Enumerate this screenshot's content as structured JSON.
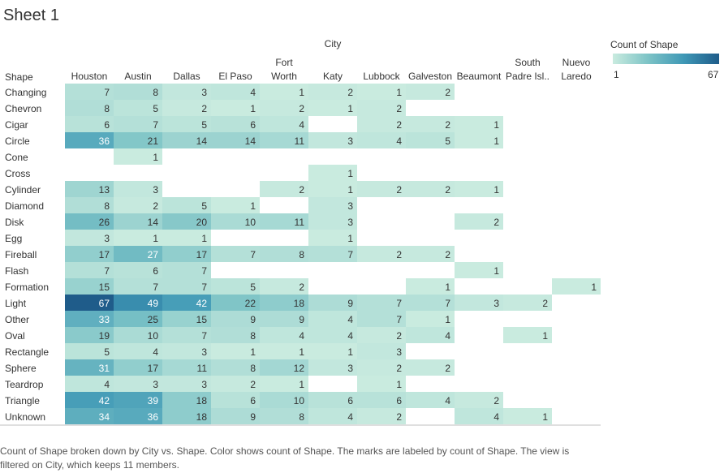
{
  "sheet_title": "Sheet 1",
  "legend": {
    "title": "Count of Shape",
    "min_label": "1",
    "max_label": "67",
    "colors": [
      "#c9ebdf",
      "#7cc3c6",
      "#3f98b6",
      "#1f5c8a"
    ]
  },
  "caption": "Count of Shape broken down by City vs. Shape.  Color shows count of Shape.  The marks are labeled by count of Shape. The view is filtered on City, which keeps 11 members.",
  "chart_data": {
    "type": "heatmap",
    "column_axis_title": "City",
    "row_axis_title": "Shape",
    "columns": [
      [
        "Houston"
      ],
      [
        "Austin"
      ],
      [
        "Dallas"
      ],
      [
        "El Paso"
      ],
      [
        "Fort",
        "Worth"
      ],
      [
        "Katy"
      ],
      [
        "Lubbock"
      ],
      [
        "Galveston"
      ],
      [
        "Beaumont"
      ],
      [
        "South",
        "Padre Isl.."
      ],
      [
        "Nuevo",
        "Laredo"
      ]
    ],
    "rows": [
      "Changing",
      "Chevron",
      "Cigar",
      "Circle",
      "Cone",
      "Cross",
      "Cylinder",
      "Diamond",
      "Disk",
      "Egg",
      "Fireball",
      "Flash",
      "Formation",
      "Light",
      "Other",
      "Oval",
      "Rectangle",
      "Sphere",
      "Teardrop",
      "Triangle",
      "Unknown"
    ],
    "values": [
      [
        7,
        8,
        3,
        4,
        1,
        2,
        1,
        2,
        null,
        null,
        null
      ],
      [
        8,
        5,
        2,
        1,
        2,
        1,
        2,
        null,
        null,
        null,
        null
      ],
      [
        6,
        7,
        5,
        6,
        4,
        null,
        2,
        2,
        1,
        null,
        null
      ],
      [
        36,
        21,
        14,
        14,
        11,
        3,
        4,
        5,
        1,
        null,
        null
      ],
      [
        null,
        1,
        null,
        null,
        null,
        null,
        null,
        null,
        null,
        null,
        null
      ],
      [
        null,
        null,
        null,
        null,
        null,
        1,
        null,
        null,
        null,
        null,
        null
      ],
      [
        13,
        3,
        null,
        null,
        2,
        1,
        2,
        2,
        1,
        null,
        null
      ],
      [
        8,
        2,
        5,
        1,
        null,
        3,
        null,
        null,
        null,
        null,
        null
      ],
      [
        26,
        14,
        20,
        10,
        11,
        3,
        null,
        null,
        2,
        null,
        null
      ],
      [
        3,
        1,
        1,
        null,
        null,
        1,
        null,
        null,
        null,
        null,
        null
      ],
      [
        17,
        27,
        17,
        7,
        8,
        7,
        2,
        2,
        null,
        null,
        null
      ],
      [
        7,
        6,
        7,
        null,
        null,
        null,
        null,
        null,
        1,
        null,
        null
      ],
      [
        15,
        7,
        7,
        5,
        2,
        null,
        null,
        1,
        null,
        null,
        1
      ],
      [
        67,
        49,
        42,
        22,
        18,
        9,
        7,
        7,
        3,
        2,
        null
      ],
      [
        33,
        25,
        15,
        9,
        9,
        4,
        7,
        1,
        null,
        null,
        null
      ],
      [
        19,
        10,
        7,
        8,
        4,
        4,
        2,
        4,
        null,
        1,
        null
      ],
      [
        5,
        4,
        3,
        1,
        1,
        1,
        3,
        null,
        null,
        null,
        null
      ],
      [
        31,
        17,
        11,
        8,
        12,
        3,
        2,
        2,
        null,
        null,
        null
      ],
      [
        4,
        3,
        3,
        2,
        1,
        null,
        1,
        null,
        null,
        null,
        null
      ],
      [
        42,
        39,
        18,
        6,
        10,
        6,
        6,
        4,
        2,
        null,
        null
      ],
      [
        34,
        36,
        18,
        9,
        8,
        4,
        2,
        null,
        4,
        1,
        null
      ]
    ],
    "color_range": [
      1,
      67
    ],
    "grid": false,
    "legend_position": "top-right"
  }
}
